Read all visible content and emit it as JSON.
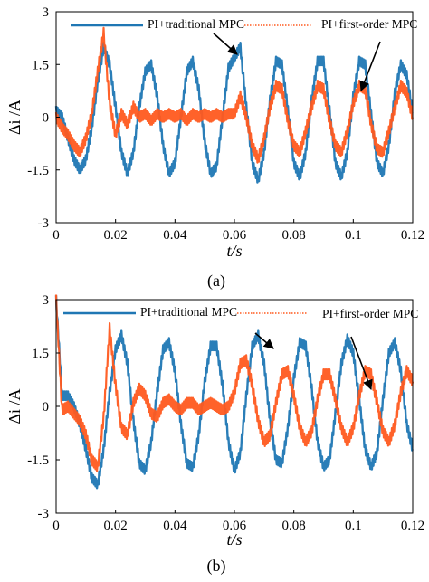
{
  "chart_data": [
    {
      "type": "line",
      "panel_label": "(a)",
      "xlabel": "t/s",
      "ylabel": "Δi /A",
      "xlim": [
        0,
        0.12
      ],
      "ylim": [
        -3,
        3
      ],
      "xticks": [
        0,
        0.02,
        0.04,
        0.06,
        0.08,
        0.1,
        0.12
      ],
      "xtick_labels": [
        "0",
        "0.02",
        "0.04",
        "0.06",
        "0.08",
        "0.1",
        "0.12"
      ],
      "yticks": [
        3,
        1.5,
        0,
        -1.5,
        -3
      ],
      "ytick_labels": [
        "3",
        "1.5",
        "0",
        "-1.5",
        "-3"
      ],
      "grid": false,
      "legend_position": "top",
      "series": [
        {
          "name": "PI+traditional MPC",
          "color": "#1f77b4",
          "style": "solid",
          "x": [
            0,
            0.002,
            0.004,
            0.006,
            0.008,
            0.01,
            0.012,
            0.014,
            0.016,
            0.018,
            0.02,
            0.022,
            0.024,
            0.026,
            0.028,
            0.03,
            0.032,
            0.034,
            0.036,
            0.038,
            0.04,
            0.042,
            0.044,
            0.046,
            0.048,
            0.05,
            0.052,
            0.054,
            0.056,
            0.058,
            0.06,
            0.062,
            0.064,
            0.066,
            0.068,
            0.07,
            0.072,
            0.074,
            0.076,
            0.078,
            0.08,
            0.082,
            0.084,
            0.086,
            0.088,
            0.09,
            0.092,
            0.094,
            0.096,
            0.098,
            0.1,
            0.102,
            0.104,
            0.106,
            0.108,
            0.11,
            0.112,
            0.114,
            0.116,
            0.118,
            0.12
          ],
          "y": [
            0.2,
            0,
            -0.6,
            -1.2,
            -1.5,
            -1.2,
            -0.3,
            1.0,
            2.0,
            1.5,
            0.3,
            -1.0,
            -1.6,
            -1.0,
            0.3,
            1.3,
            1.5,
            0.6,
            -0.8,
            -1.6,
            -1.3,
            0.0,
            1.3,
            1.6,
            0.8,
            -0.7,
            -1.6,
            -1.4,
            0.0,
            1.4,
            1.7,
            2.0,
            0.3,
            -1.3,
            -1.8,
            -1.0,
            0.5,
            1.6,
            1.5,
            0.2,
            -1.3,
            -1.7,
            -1.0,
            0.5,
            1.6,
            1.6,
            0.2,
            -1.3,
            -1.7,
            -1.0,
            0.6,
            1.6,
            1.5,
            0.1,
            -1.3,
            -1.6,
            -0.8,
            0.7,
            1.5,
            1.2,
            0.1
          ]
        },
        {
          "name": "PI+first-order MPC",
          "color": "#ff5a1f",
          "style": "dotted",
          "x": [
            0,
            0.002,
            0.004,
            0.006,
            0.008,
            0.01,
            0.012,
            0.014,
            0.016,
            0.018,
            0.02,
            0.022,
            0.024,
            0.026,
            0.028,
            0.03,
            0.032,
            0.034,
            0.036,
            0.038,
            0.04,
            0.042,
            0.044,
            0.046,
            0.048,
            0.05,
            0.052,
            0.054,
            0.056,
            0.058,
            0.06,
            0.062,
            0.064,
            0.066,
            0.068,
            0.07,
            0.072,
            0.074,
            0.076,
            0.078,
            0.08,
            0.082,
            0.084,
            0.086,
            0.088,
            0.09,
            0.092,
            0.094,
            0.096,
            0.098,
            0.1,
            0.102,
            0.104,
            0.106,
            0.108,
            0.11,
            0.112,
            0.114,
            0.116,
            0.118,
            0.12
          ],
          "y": [
            0.0,
            -0.3,
            -0.5,
            -0.8,
            -1.0,
            -0.6,
            0.1,
            1.3,
            2.4,
            0.4,
            -0.5,
            0.1,
            -0.2,
            0.3,
            0.0,
            0.1,
            -0.1,
            0.1,
            0.0,
            0.1,
            0.0,
            0.1,
            -0.1,
            0.1,
            0.0,
            0.1,
            0.0,
            0.1,
            0.0,
            0.1,
            0.1,
            0.6,
            0.0,
            -0.8,
            -1.2,
            -0.6,
            0.3,
            0.9,
            0.8,
            -0.1,
            -0.8,
            -1.0,
            -0.4,
            0.3,
            0.9,
            0.8,
            -0.1,
            -0.8,
            -1.0,
            -0.4,
            0.4,
            0.9,
            0.8,
            -0.2,
            -0.9,
            -1.0,
            -0.4,
            0.3,
            0.9,
            0.7,
            0.0
          ]
        }
      ],
      "annotations": [
        "arrow to PI+traditional MPC peak near t=0.062",
        "arrow to PI+first-order MPC peak near t=0.104"
      ]
    },
    {
      "type": "line",
      "panel_label": "(b)",
      "xlabel": "t/s",
      "ylabel": "Δi /A",
      "xlim": [
        0,
        0.12
      ],
      "ylim": [
        -3,
        3
      ],
      "xticks": [
        0,
        0.02,
        0.04,
        0.06,
        0.08,
        0.1,
        0.12
      ],
      "xtick_labels": [
        "0",
        "0.02",
        "0.04",
        "0.06",
        "0.08",
        "0.1",
        "0.12"
      ],
      "yticks": [
        3,
        1.5,
        0,
        -1.5,
        -3
      ],
      "ytick_labels": [
        "3",
        "1.5",
        "0",
        "-1.5",
        "-3"
      ],
      "grid": false,
      "legend_position": "top",
      "series": [
        {
          "name": "PI+traditional MPC",
          "color": "#1f77b4",
          "style": "solid",
          "x": [
            0,
            0.002,
            0.004,
            0.006,
            0.008,
            0.01,
            0.012,
            0.014,
            0.016,
            0.018,
            0.02,
            0.022,
            0.024,
            0.026,
            0.028,
            0.03,
            0.032,
            0.034,
            0.036,
            0.038,
            0.04,
            0.042,
            0.044,
            0.046,
            0.048,
            0.05,
            0.052,
            0.054,
            0.056,
            0.058,
            0.06,
            0.062,
            0.064,
            0.066,
            0.068,
            0.07,
            0.072,
            0.074,
            0.076,
            0.078,
            0.08,
            0.082,
            0.084,
            0.086,
            0.088,
            0.09,
            0.092,
            0.094,
            0.096,
            0.098,
            0.1,
            0.102,
            0.104,
            0.106,
            0.108,
            0.11,
            0.112,
            0.114,
            0.116,
            0.118,
            0.12
          ],
          "y": [
            3.0,
            0.3,
            0.3,
            0.0,
            -0.5,
            -1.2,
            -2.0,
            -2.2,
            -1.2,
            0.4,
            1.6,
            2.0,
            1.2,
            -0.4,
            -1.6,
            -1.8,
            -1.0,
            0.4,
            1.6,
            1.8,
            1.0,
            -0.5,
            -1.6,
            -1.7,
            -0.8,
            0.7,
            1.7,
            1.7,
            0.6,
            -1.0,
            -1.8,
            -1.3,
            0.3,
            1.7,
            2.0,
            1.2,
            -0.4,
            -1.5,
            -1.6,
            -0.6,
            0.8,
            1.8,
            1.7,
            0.5,
            -1.0,
            -1.7,
            -1.5,
            -0.2,
            1.2,
            1.9,
            1.5,
            0.2,
            -1.2,
            -1.7,
            -1.3,
            0.2,
            1.5,
            1.8,
            1.0,
            -0.5,
            -1.2
          ]
        },
        {
          "name": "PI+first-order MPC",
          "color": "#ff5a1f",
          "style": "dotted",
          "x": [
            0,
            0.002,
            0.004,
            0.006,
            0.008,
            0.01,
            0.012,
            0.014,
            0.016,
            0.018,
            0.02,
            0.022,
            0.024,
            0.026,
            0.028,
            0.03,
            0.032,
            0.034,
            0.036,
            0.038,
            0.04,
            0.042,
            0.044,
            0.046,
            0.048,
            0.05,
            0.052,
            0.054,
            0.056,
            0.058,
            0.06,
            0.062,
            0.064,
            0.066,
            0.068,
            0.07,
            0.072,
            0.074,
            0.076,
            0.078,
            0.08,
            0.082,
            0.084,
            0.086,
            0.088,
            0.09,
            0.092,
            0.094,
            0.096,
            0.098,
            0.1,
            0.102,
            0.104,
            0.106,
            0.108,
            0.11,
            0.112,
            0.114,
            0.116,
            0.118,
            0.12
          ],
          "y": [
            3.0,
            -0.1,
            0.0,
            -0.2,
            -0.4,
            -0.8,
            -1.5,
            -1.7,
            -0.3,
            2.2,
            0.6,
            -0.6,
            -0.8,
            0.1,
            0.5,
            0.3,
            -0.2,
            -0.3,
            0.1,
            0.2,
            0.0,
            -0.1,
            0.1,
            0.1,
            -0.1,
            0.0,
            0.1,
            0.0,
            -0.1,
            0.0,
            0.4,
            1.2,
            1.3,
            0.6,
            -0.4,
            -1.0,
            -0.8,
            0.1,
            0.9,
            1.0,
            0.3,
            -0.6,
            -1.0,
            -0.7,
            0.2,
            0.9,
            0.9,
            0.2,
            -0.6,
            -1.0,
            -0.6,
            0.3,
            1.0,
            0.9,
            0.1,
            -0.7,
            -1.0,
            -0.5,
            0.4,
            1.0,
            0.7
          ]
        }
      ],
      "annotations": [
        "arrow to PI+traditional MPC peak near t=0.066",
        "arrow to PI+first-order MPC peak near t=0.108"
      ]
    }
  ]
}
